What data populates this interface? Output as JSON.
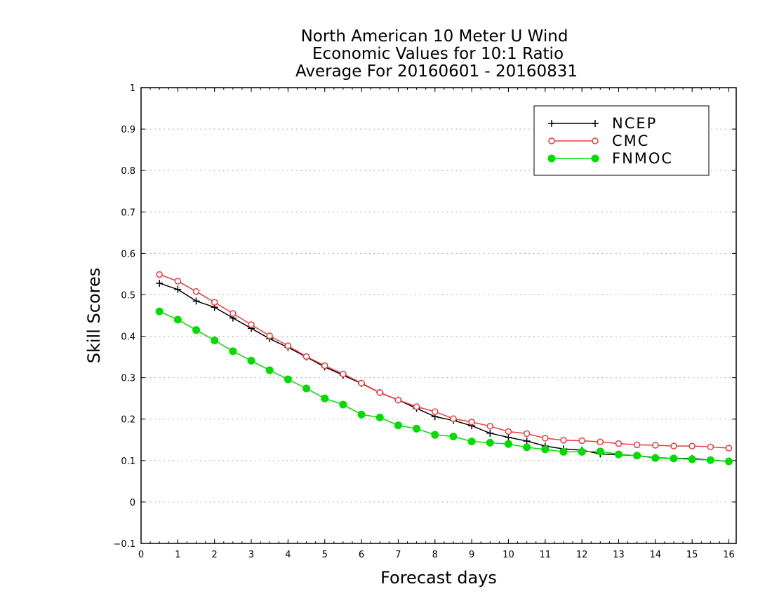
{
  "chart_data": {
    "type": "line",
    "title_lines": [
      "North American 10 Meter U Wind",
      "Economic Values for 10:1 Ratio",
      "Average For 20160601 - 20160831"
    ],
    "xlabel": "Forecast days",
    "ylabel": "Skill Scores",
    "xlim": [
      0,
      16.2
    ],
    "ylim": [
      -0.1,
      1
    ],
    "xticks": [
      0,
      1,
      2,
      3,
      4,
      5,
      6,
      7,
      8,
      9,
      10,
      11,
      12,
      13,
      14,
      15,
      16
    ],
    "yticks": [
      -0.1,
      0,
      0.1,
      0.2,
      0.3,
      0.4,
      0.5,
      0.6,
      0.7,
      0.8,
      0.9,
      1
    ],
    "ytick_labels": [
      "−0.1",
      "0",
      "0.1",
      "0.2",
      "0.3",
      "0.4",
      "0.5",
      "0.6",
      "0.7",
      "0.8",
      "0.9",
      "1"
    ],
    "grid": true,
    "legend_position": "top-right",
    "x": [
      0.5,
      1,
      1.5,
      2,
      2.5,
      3,
      3.5,
      4,
      4.5,
      5,
      5.5,
      6,
      6.5,
      7,
      7.5,
      8,
      8.5,
      9,
      9.5,
      10,
      10.5,
      11,
      11.5,
      12,
      12.5,
      13,
      13.5,
      14,
      14.5,
      15,
      15.5,
      16
    ],
    "series": [
      {
        "name": "NCEP",
        "color": "#000000",
        "marker": "plus",
        "values": [
          0.528,
          0.513,
          0.485,
          0.47,
          0.444,
          0.419,
          0.394,
          0.373,
          0.35,
          0.326,
          0.306,
          0.286,
          0.264,
          0.246,
          0.226,
          0.206,
          0.197,
          0.184,
          0.166,
          0.156,
          0.147,
          0.135,
          0.128,
          0.125,
          0.116,
          0.114,
          0.112,
          0.107,
          0.105,
          0.105,
          0.101,
          0.098
        ]
      },
      {
        "name": "CMC",
        "color": "#ee3b3b",
        "marker": "open-circle",
        "values": [
          0.549,
          0.533,
          0.508,
          0.482,
          0.455,
          0.428,
          0.401,
          0.377,
          0.351,
          0.329,
          0.309,
          0.287,
          0.264,
          0.246,
          0.23,
          0.218,
          0.201,
          0.193,
          0.183,
          0.17,
          0.165,
          0.154,
          0.149,
          0.148,
          0.145,
          0.141,
          0.138,
          0.137,
          0.135,
          0.135,
          0.133,
          0.13
        ]
      },
      {
        "name": "FNMOC",
        "color": "#00dd00",
        "marker": "filled-circle",
        "values": [
          0.46,
          0.44,
          0.415,
          0.39,
          0.364,
          0.341,
          0.318,
          0.296,
          0.274,
          0.25,
          0.235,
          0.211,
          0.204,
          0.185,
          0.177,
          0.162,
          0.158,
          0.146,
          0.143,
          0.14,
          0.132,
          0.127,
          0.121,
          0.121,
          0.122,
          0.115,
          0.112,
          0.106,
          0.105,
          0.103,
          0.101,
          0.098
        ]
      }
    ]
  }
}
